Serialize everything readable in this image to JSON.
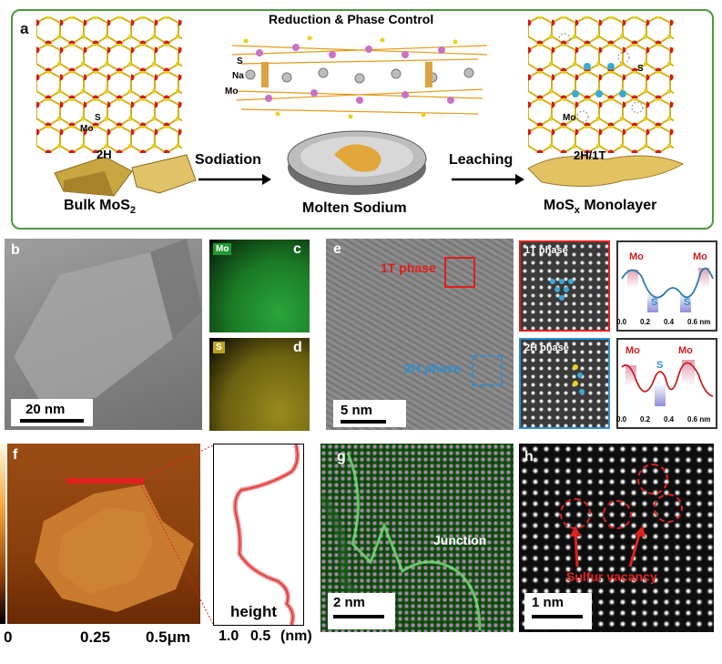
{
  "panel_a": {
    "label": "a",
    "title": "Reduction & Phase Control",
    "step1": "Sodiation",
    "step2": "Leaching",
    "left_caption": "Bulk MoS",
    "left_caption_sub": "2",
    "middle_caption": "Molten Sodium",
    "right_caption": "MoS",
    "right_caption_sub": "x",
    "right_caption_tail": " Monolayer",
    "left_phase": "2H",
    "right_phase": "2H/1T",
    "atom_s": "S",
    "atom_mo": "Mo",
    "atom_na": "Na",
    "colors": {
      "border": "#4d9a3b",
      "mo": "#d51a1a",
      "s": "#e6d21a",
      "mo_blue": "#39a9d6"
    }
  },
  "panel_b": {
    "label": "b",
    "scale": "20 nm"
  },
  "panel_c": {
    "label": "c",
    "element": "Mo",
    "color": "#1f9a33"
  },
  "panel_d": {
    "label": "d",
    "element": "S",
    "color": "#b8a41c"
  },
  "panel_e": {
    "label": "e",
    "scale": "5 nm",
    "box1": "1T phase",
    "box2": "2H phase",
    "inset1_title": "1T phase",
    "inset2_title": "2H phase",
    "profile1": {
      "peak_left": "Mo",
      "peak_right": "Mo",
      "valley_left": "S",
      "valley_right": "S",
      "ticks": [
        "0.0",
        "0.2",
        "0.4",
        "0.6 nm"
      ]
    },
    "profile2": {
      "peak_left": "Mo",
      "peak_right": "Mo",
      "center": "S",
      "ticks": [
        "0.0",
        "0.2",
        "0.4",
        "0.6 nm"
      ]
    }
  },
  "panel_f": {
    "label": "f",
    "x_ticks": [
      "0",
      "0.25",
      "0.5μm"
    ],
    "profile_label": "height",
    "profile_ticks": [
      "1.0",
      "0.5",
      "(nm)"
    ]
  },
  "panel_g": {
    "label": "g",
    "scale": "2 nm",
    "annotation": "Junction"
  },
  "panel_h": {
    "label": "h",
    "scale": "1 nm",
    "annotation": "Sulfur vacancy"
  }
}
